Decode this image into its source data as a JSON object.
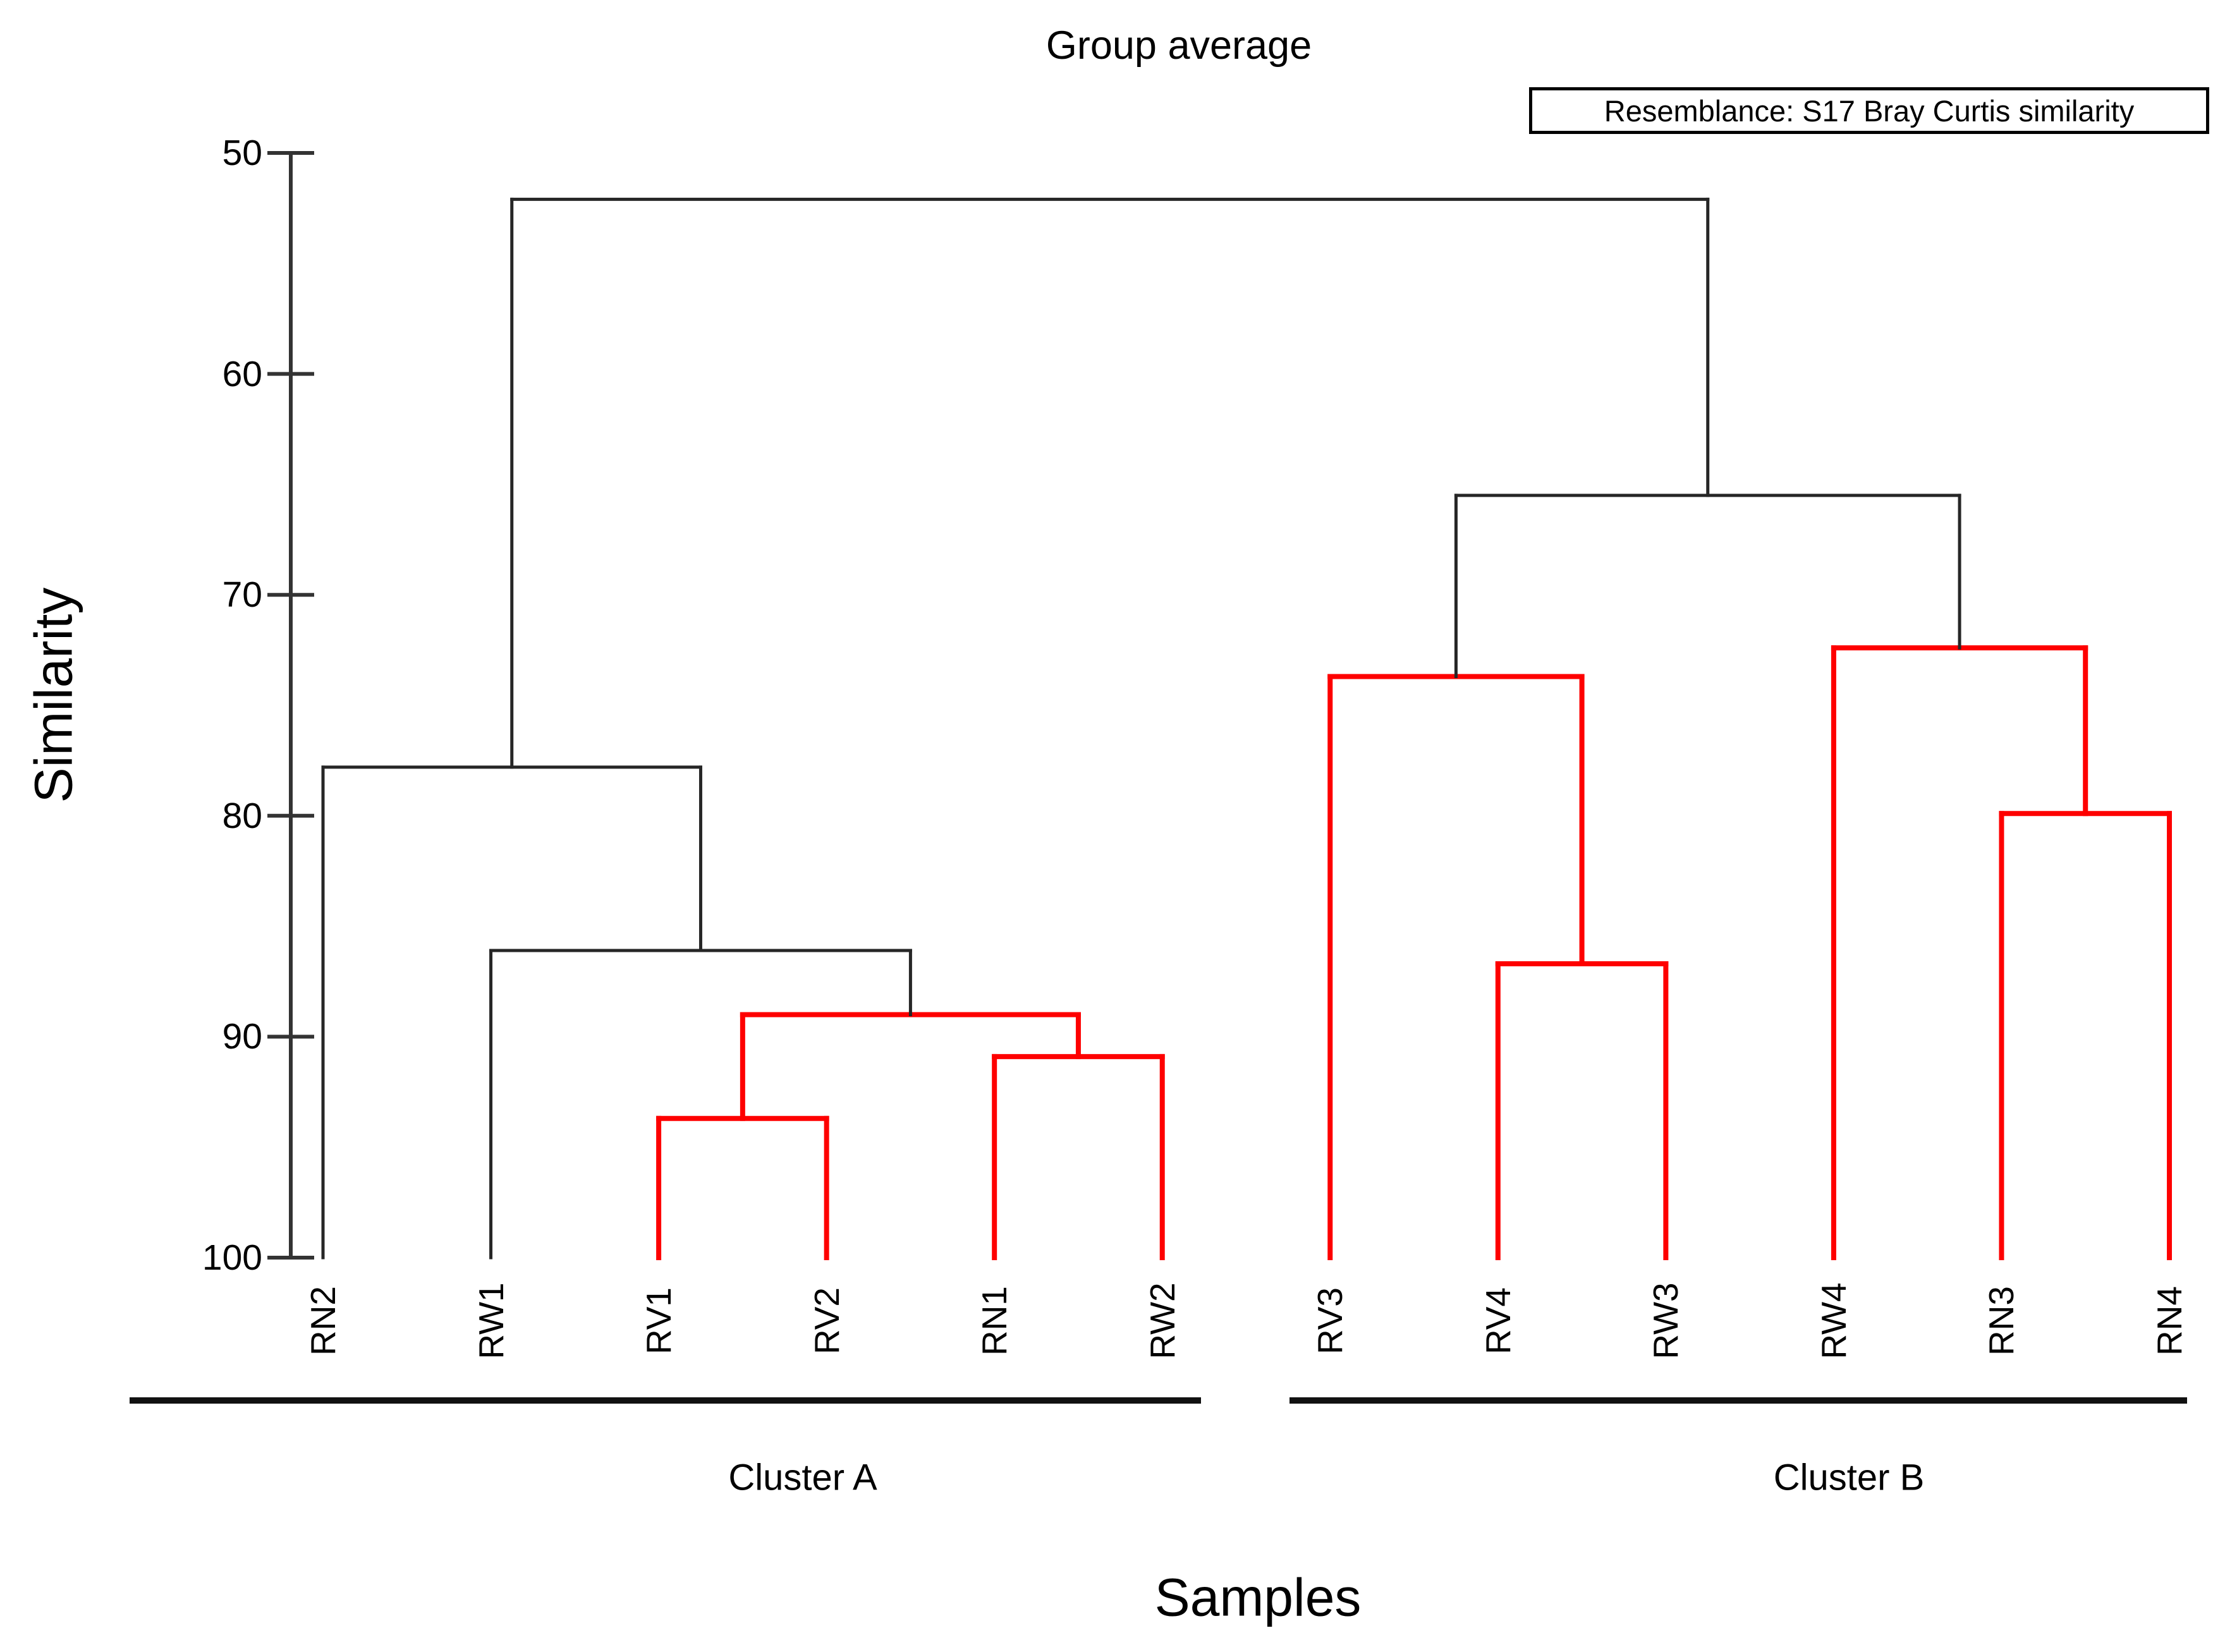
{
  "title": "Group average",
  "resemblance": "Resemblance: S17 Bray Curtis similarity",
  "y_axis": {
    "label": "Similarity"
  },
  "x_axis": {
    "label": "Samples"
  },
  "clusters": [
    {
      "label": "Cluster A"
    },
    {
      "label": "Cluster B"
    }
  ],
  "colors": {
    "red": "#fe0000",
    "black": "#262626",
    "axis": "#333333",
    "text": "#000000"
  },
  "chart_data": {
    "type": "dendrogram",
    "orientation": "root-top",
    "linkage": "Group average",
    "resemblance": "S17 Bray Curtis similarity",
    "ylabel": "Similarity",
    "xlabel": "Samples",
    "y_range": [
      50,
      100
    ],
    "y_ticks": [
      50,
      60,
      70,
      80,
      90,
      100
    ],
    "leaves": [
      {
        "label": "RN2",
        "color": "black",
        "cluster": "Cluster A"
      },
      {
        "label": "RW1",
        "color": "black",
        "cluster": "Cluster A"
      },
      {
        "label": "RV1",
        "color": "red",
        "cluster": "Cluster A"
      },
      {
        "label": "RV2",
        "color": "red",
        "cluster": "Cluster A"
      },
      {
        "label": "RN1",
        "color": "red",
        "cluster": "Cluster A"
      },
      {
        "label": "RW2",
        "color": "red",
        "cluster": "Cluster A"
      },
      {
        "label": "RV3",
        "color": "red",
        "cluster": "Cluster B"
      },
      {
        "label": "RV4",
        "color": "red",
        "cluster": "Cluster B"
      },
      {
        "label": "RW3",
        "color": "red",
        "cluster": "Cluster B"
      },
      {
        "label": "RW4",
        "color": "red",
        "cluster": "Cluster B"
      },
      {
        "label": "RN3",
        "color": "red",
        "cluster": "Cluster B"
      },
      {
        "label": "RN4",
        "color": "red",
        "cluster": "Cluster B"
      }
    ],
    "tree": {
      "height": 52.1,
      "color": "black",
      "children": [
        {
          "height": 77.8,
          "color": "black",
          "children": [
            {
              "leaf": "RN2",
              "color": "black"
            },
            {
              "height": 86.1,
              "color": "black",
              "children": [
                {
                  "leaf": "RW1",
                  "color": "black"
                },
                {
                  "height": 89.0,
                  "color": "red",
                  "stem": "black",
                  "children": [
                    {
                      "height": 93.7,
                      "color": "red",
                      "children": [
                        {
                          "leaf": "RV1",
                          "color": "red"
                        },
                        {
                          "leaf": "RV2",
                          "color": "red"
                        }
                      ]
                    },
                    {
                      "height": 90.9,
                      "color": "red",
                      "children": [
                        {
                          "leaf": "RN1",
                          "color": "red"
                        },
                        {
                          "leaf": "RW2",
                          "color": "red"
                        }
                      ]
                    }
                  ]
                }
              ]
            }
          ]
        },
        {
          "height": 65.5,
          "color": "black",
          "children": [
            {
              "height": 73.7,
              "color": "red",
              "stem": "black",
              "children": [
                {
                  "leaf": "RV3",
                  "color": "red"
                },
                {
                  "height": 86.7,
                  "color": "red",
                  "children": [
                    {
                      "leaf": "RV4",
                      "color": "red"
                    },
                    {
                      "leaf": "RW3",
                      "color": "red"
                    }
                  ]
                }
              ]
            },
            {
              "height": 72.4,
              "color": "red",
              "stem": "black",
              "children": [
                {
                  "leaf": "RW4",
                  "color": "red"
                },
                {
                  "height": 79.9,
                  "color": "red",
                  "children": [
                    {
                      "leaf": "RN3",
                      "color": "red"
                    },
                    {
                      "leaf": "RN4",
                      "color": "red"
                    }
                  ]
                }
              ]
            }
          ]
        }
      ]
    }
  }
}
